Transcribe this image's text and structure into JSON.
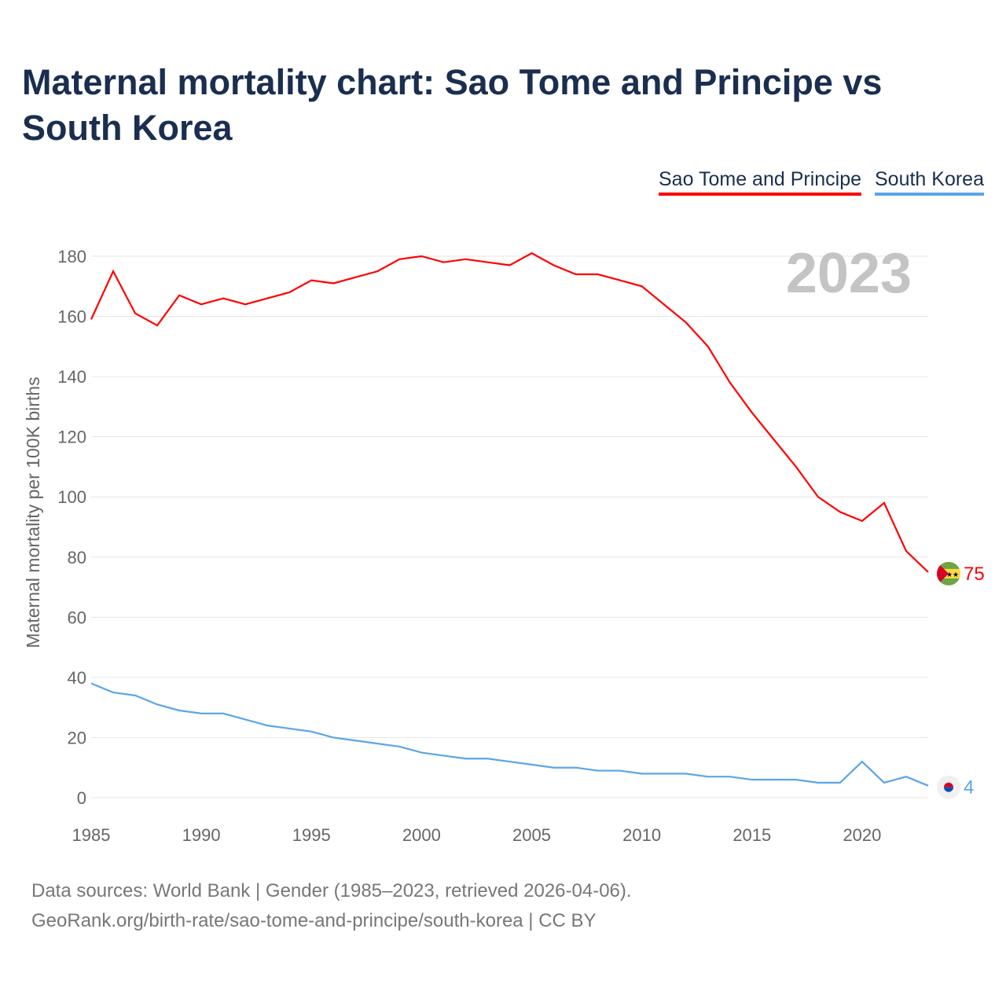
{
  "title": "Maternal mortality chart: Sao Tome and Principe vs South Korea",
  "legend": [
    "Sao Tome and Principe",
    "South Korea"
  ],
  "year_label": "2023",
  "footer": {
    "line1": "Data sources: World Bank | Gender (1985–2023, retrieved 2026-04-06).",
    "line2": "GeoRank.org/birth-rate/sao-tome-and-principe/south-korea | CC BY"
  },
  "chart_data": {
    "type": "line",
    "title": "Maternal mortality chart: Sao Tome and Principe vs South Korea",
    "xlabel": "",
    "ylabel": "Maternal mortality per 100K births",
    "xlim": [
      1985,
      2023
    ],
    "ylim": [
      0,
      180
    ],
    "xticks": [
      1985,
      1990,
      1995,
      2000,
      2005,
      2010,
      2015,
      2020
    ],
    "yticks": [
      0,
      20,
      40,
      60,
      80,
      100,
      120,
      140,
      160,
      180
    ],
    "grid": true,
    "legend_position": "top-right",
    "x": [
      1985,
      1986,
      1987,
      1988,
      1989,
      1990,
      1991,
      1992,
      1993,
      1994,
      1995,
      1996,
      1997,
      1998,
      1999,
      2000,
      2001,
      2002,
      2003,
      2004,
      2005,
      2006,
      2007,
      2008,
      2009,
      2010,
      2011,
      2012,
      2013,
      2014,
      2015,
      2016,
      2017,
      2018,
      2019,
      2020,
      2021,
      2022,
      2023
    ],
    "series": [
      {
        "name": "Sao Tome and Principe",
        "color": "#ff0000",
        "end_label": "75",
        "values": [
          159,
          175,
          161,
          157,
          167,
          164,
          166,
          164,
          166,
          168,
          172,
          171,
          173,
          175,
          179,
          180,
          178,
          179,
          178,
          177,
          181,
          177,
          174,
          174,
          172,
          170,
          164,
          158,
          150,
          138,
          128,
          119,
          110,
          100,
          95,
          92,
          98,
          82,
          75
        ]
      },
      {
        "name": "South Korea",
        "color": "#5aa5ea",
        "end_label": "4",
        "values": [
          38,
          35,
          34,
          31,
          29,
          28,
          28,
          26,
          24,
          23,
          22,
          20,
          19,
          18,
          17,
          15,
          14,
          13,
          13,
          12,
          11,
          10,
          10,
          9,
          9,
          8,
          8,
          8,
          7,
          7,
          6,
          6,
          6,
          5,
          5,
          12,
          5,
          7,
          4
        ]
      }
    ]
  }
}
